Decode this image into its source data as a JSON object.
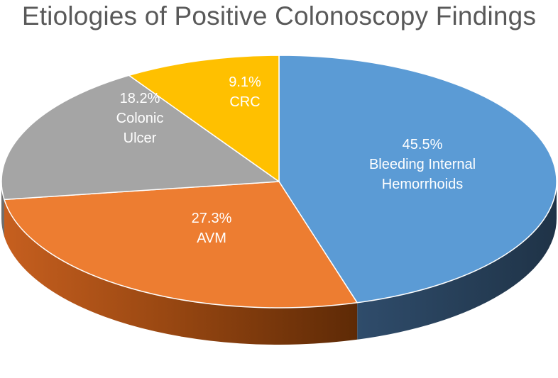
{
  "chart_data": {
    "type": "pie",
    "title": "Etiologies of Positive Colonoscopy Findings",
    "categories": [
      "Bleeding Internal Hemorrhoids",
      "AVM",
      "Colonic Ulcer",
      "CRC"
    ],
    "values": [
      45.5,
      27.3,
      18.2,
      9.1
    ],
    "percent_labels": [
      "45.5%",
      "27.3%",
      "18.2%",
      "9.1%"
    ],
    "label_lines": [
      [
        "45.5%",
        "Bleeding Internal",
        "Hemorrhoids"
      ],
      [
        "27.3%",
        "AVM"
      ],
      [
        "18.2%",
        "Colonic",
        "Ulcer"
      ],
      [
        "9.1%",
        "CRC"
      ]
    ],
    "colors": [
      "#5B9BD5",
      "#ED7D31",
      "#A5A5A5",
      "#FFC000"
    ],
    "side_colors": [
      "#2E4A67",
      "#A6521A",
      "#6E6E6E",
      "#B38700"
    ],
    "style": "3d"
  }
}
